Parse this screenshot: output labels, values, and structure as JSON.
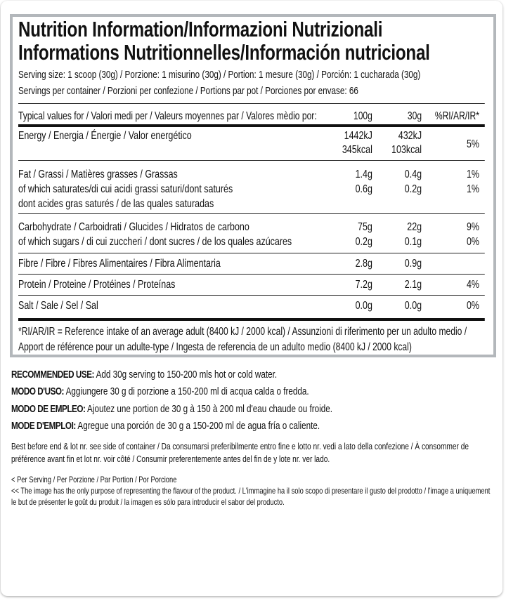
{
  "title": {
    "line1": "Nutrition Information/Informazioni Nutrizionali",
    "line2": "Informations Nutritionnelles/Información nutricional"
  },
  "serving_size": "Serving size: 1 scoop (30g) / Porzione: 1 misurino (30g) / Portion: 1 mesure (30g) / Porción: 1 cucharada (30g)",
  "servings_per_container": "Servings per container / Porzioni per confezione / Portions par pot / Porciones por envase: 66",
  "table": {
    "header": {
      "label": "Typical values for / Valori medi per / Valeurs moyennes par / Valores mèdio por:",
      "col1": "100g",
      "col2": "30g",
      "col3": "%RI/AR/IR*"
    },
    "energy": {
      "label": "Energy / Energia / Énergie / Valor energético",
      "per100_kj": "1442kJ",
      "per100_kcal": "345kcal",
      "per30_kj": "432kJ",
      "per30_kcal": "103kcal",
      "ri": "5%"
    },
    "fat": {
      "label": "Fat / Grassi / Matières grasses / Grassas",
      "per100": "1.4g",
      "per30": "0.4g",
      "ri": "1%",
      "sat_label_1": "of which saturates/di cui acidi grassi saturi/dont saturés",
      "sat_label_2": "dont acides gras saturés / de las quales saturadas",
      "sat_per100": "0.6g",
      "sat_per30": "0.2g",
      "sat_ri": "1%"
    },
    "carbohydrate": {
      "label": "Carbohydrate / Carboidrati / Glucides / Hidratos de carbono",
      "per100": "75g",
      "per30": "22g",
      "ri": "9%",
      "sugars_label": "of which sugars / di cui zuccheri / dont sucres / de los quales azúcares",
      "sugars_per100": "0.2g",
      "sugars_per30": "0.1g",
      "sugars_ri": "0%"
    },
    "fibre": {
      "label": "Fibre / Fibre / Fibres Alimentaires / Fibra Alimentaria",
      "per100": "2.8g",
      "per30": "0.9g",
      "ri": ""
    },
    "protein": {
      "label": "Protein / Proteine / Protéines / Proteínas",
      "per100": "7.2g",
      "per30": "2.1g",
      "ri": "4%"
    },
    "salt": {
      "label": "Salt / Sale / Sel / Sal",
      "per100": "0.0g",
      "per30": "0.0g",
      "ri": "0%"
    }
  },
  "footnote": "*RI/AR/IR = Reference intake of an average adult (8400 kJ / 2000 kcal)  / Assunzioni di riferimento per un adulto medio / Apport de référence pour un adulte-type / Ingesta de referencia de un adulto medio (8400 kJ / 2000 kcal)",
  "usage": [
    {
      "heading": "RECOMMENDED USE:",
      "text": " Add 30g serving to 150-200 mls hot or cold water."
    },
    {
      "heading": "MODO D'USO:",
      "text": " Aggiungere 30 g di porzione a 150-200 ml di acqua calda o fredda."
    },
    {
      "heading": "MODO DE EMPLEO:",
      "text": " Ajoutez une portion de 30 g à 150 à 200 ml d'eau chaude ou froide."
    },
    {
      "heading": "MODE D'EMPLOI:",
      "text": " Agregue una porción de 30 g a 150-200 ml de agua fría o caliente."
    }
  ],
  "best_before": "Best before end & lot nr. see side of container / Da consumarsi preferibilmente entro fine e lotto nr. vedi a lato della confezione / À consommer de préférence avant fin et lot nr. voir côté / Consumir preferentemente antes del fin de y lote nr. ver lado.",
  "per_serving_note": "< Per Serving / Per Porzione / Par Portion / Por Porcione",
  "image_note": "<< The image has the only purpose of representing the flavour of the product. / L'immagine ha il solo scopo di presentare il gusto del prodotto / l'image a uniquement le but de présenter le goût du produit / la imagen es sólo para introducir el sabor del producto."
}
